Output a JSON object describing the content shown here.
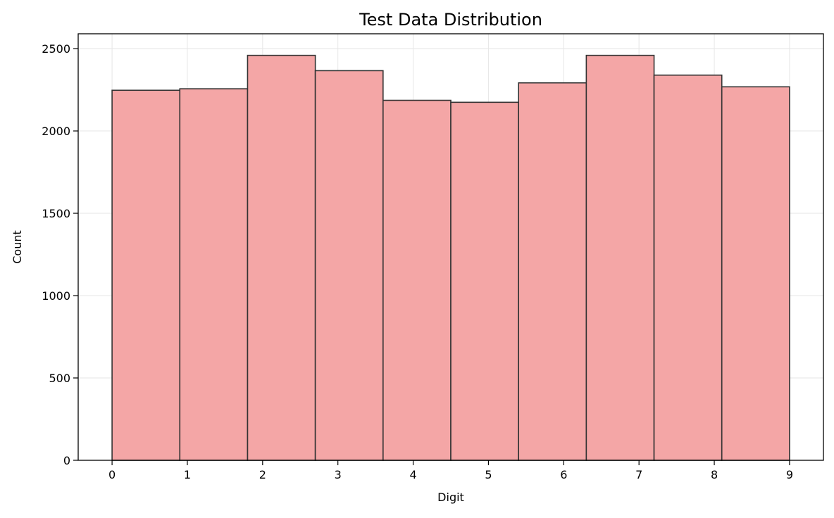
{
  "chart_data": {
    "type": "bar",
    "title": "Test Data Distribution",
    "xlabel": "Digit",
    "ylabel": "Count",
    "x_ticks": [
      0,
      1,
      2,
      3,
      4,
      5,
      6,
      7,
      8,
      9
    ],
    "y_ticks": [
      0,
      500,
      1000,
      1500,
      2000,
      2500
    ],
    "xlim": [
      -0.45,
      9.45
    ],
    "ylim": [
      0,
      2590
    ],
    "bins": [
      {
        "start": 0.0,
        "end": 0.9,
        "count": 2247
      },
      {
        "start": 0.9,
        "end": 1.8,
        "count": 2256
      },
      {
        "start": 1.8,
        "end": 2.7,
        "count": 2459
      },
      {
        "start": 2.7,
        "end": 3.6,
        "count": 2366
      },
      {
        "start": 3.6,
        "end": 4.5,
        "count": 2186
      },
      {
        "start": 4.5,
        "end": 5.4,
        "count": 2174
      },
      {
        "start": 5.4,
        "end": 6.3,
        "count": 2292
      },
      {
        "start": 6.3,
        "end": 7.2,
        "count": 2459
      },
      {
        "start": 7.2,
        "end": 8.1,
        "count": 2339
      },
      {
        "start": 8.1,
        "end": 9.0,
        "count": 2268
      }
    ],
    "grid": true,
    "colors": {
      "bar_fill": "#f4a6a6",
      "bar_edge": "#333333",
      "grid": "#e6e6e6",
      "axis": "#000000"
    }
  }
}
